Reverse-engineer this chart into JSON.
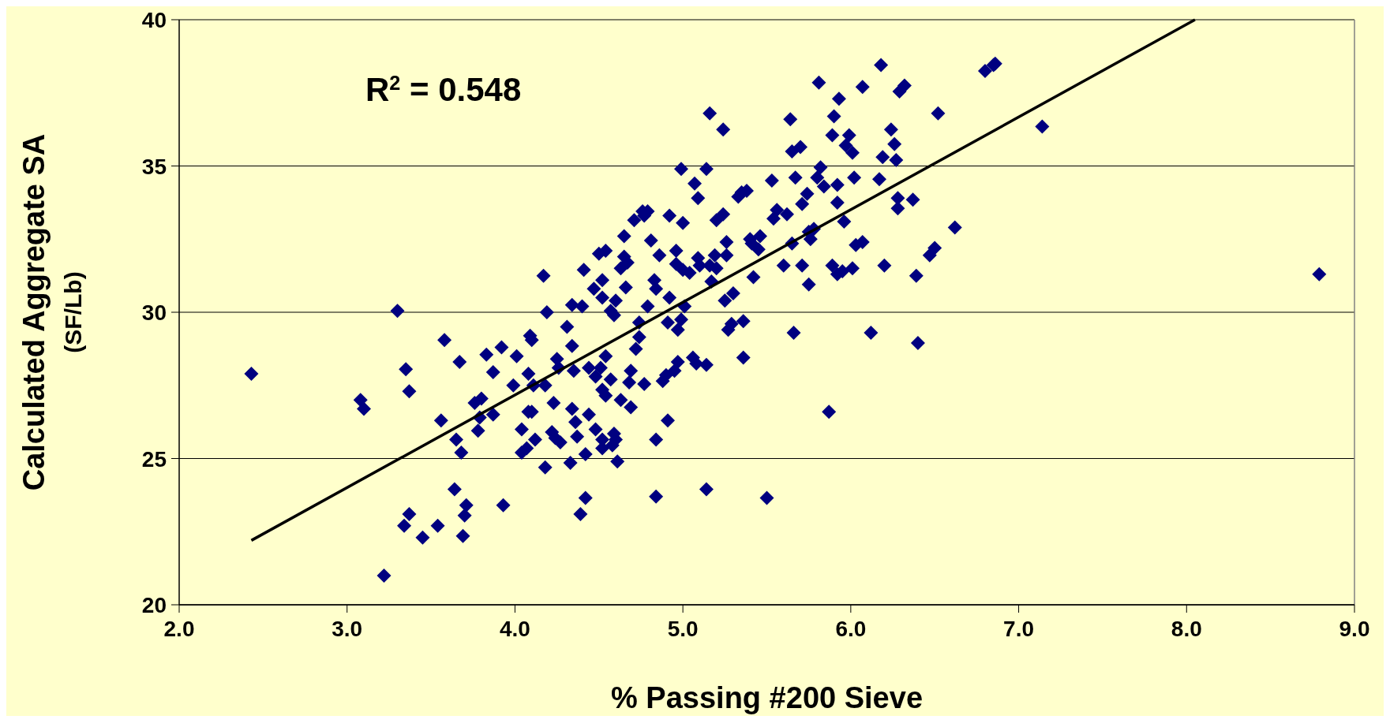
{
  "chart_data": {
    "type": "scatter",
    "xlabel": "% Passing #200 Sieve",
    "ylabel": "Calculated Aggregate SA\n(SF/Lb)",
    "xlim": [
      2,
      9
    ],
    "xticks": [
      {
        "value": 2,
        "label": "2.0"
      },
      {
        "value": 3,
        "label": "3.0"
      },
      {
        "value": 4,
        "label": "4.0"
      },
      {
        "value": 5,
        "label": "5.0"
      },
      {
        "value": 6,
        "label": "6.0"
      },
      {
        "value": 7,
        "label": "7.0"
      },
      {
        "value": 8,
        "label": "8.0"
      },
      {
        "value": 9,
        "label": "9.0"
      }
    ],
    "ylim": [
      20,
      40
    ],
    "yticks": [
      20,
      25,
      30,
      35,
      40
    ],
    "grid": "y",
    "annotations": [
      "R$^{2}$ = 0.548"
    ],
    "series": [
      {
        "marker": "diamond",
        "color": "#000080",
        "x": [
          2.43,
          3.3,
          3.08,
          3.1,
          3.35,
          3.37,
          3.34,
          3.37,
          3.22,
          3.45,
          3.54,
          3.56,
          3.58,
          3.64,
          3.65,
          3.67,
          3.68,
          3.7,
          3.69,
          3.71,
          3.76,
          3.78,
          3.8,
          3.79,
          3.83,
          3.87,
          3.87,
          3.92,
          3.93,
          3.99,
          4.01,
          4.04,
          4.04,
          4.07,
          4.09,
          4.1,
          4.08,
          4.11,
          4.08,
          4.1,
          4.12,
          4.17,
          4.19,
          4.18,
          4.18,
          4.22,
          4.23,
          4.25,
          4.26,
          4.24,
          4.27,
          4.31,
          4.33,
          4.34,
          4.34,
          4.35,
          4.34,
          4.36,
          4.37,
          4.41,
          4.4,
          4.39,
          4.42,
          4.42,
          4.44,
          4.44,
          4.47,
          4.48,
          4.48,
          4.5,
          4.52,
          4.52,
          4.51,
          4.52,
          4.52,
          4.52,
          4.54,
          4.54,
          4.54,
          4.57,
          4.57,
          4.58,
          4.59,
          4.6,
          4.59,
          4.6,
          4.61,
          4.63,
          4.63,
          4.65,
          4.65,
          4.66,
          4.67,
          4.68,
          4.69,
          4.69,
          4.71,
          4.72,
          4.74,
          4.74,
          4.76,
          4.77,
          4.77,
          4.79,
          4.79,
          4.81,
          4.83,
          4.84,
          4.84,
          4.84,
          4.86,
          4.88,
          4.9,
          4.91,
          4.91,
          4.92,
          4.92,
          4.95,
          4.96,
          4.96,
          4.97,
          4.97,
          4.99,
          5.0,
          5.0,
          5.01,
          4.99,
          5.04,
          5.06,
          5.07,
          5.09,
          5.08,
          5.09,
          5.1,
          5.14,
          5.14,
          5.14,
          5.16,
          5.16,
          5.17,
          5.19,
          5.2,
          5.2,
          5.24,
          5.24,
          5.26,
          5.26,
          5.25,
          5.27,
          5.29,
          5.3,
          5.33,
          5.35,
          5.36,
          5.36,
          5.38,
          5.4,
          5.42,
          5.41,
          5.45,
          5.46,
          5.5,
          5.53,
          5.54,
          5.56,
          5.6,
          5.62,
          5.64,
          5.65,
          5.65,
          5.66,
          5.67,
          5.7,
          5.71,
          5.71,
          5.74,
          5.75,
          5.76,
          5.75,
          5.78,
          5.8,
          5.81,
          5.82,
          5.84,
          5.87,
          5.89,
          5.89,
          5.9,
          5.92,
          5.92,
          5.93,
          5.92,
          5.95,
          5.96,
          5.97,
          5.99,
          6.01,
          6.01,
          6.02,
          6.03,
          6.07,
          6.07,
          6.12,
          6.17,
          6.18,
          6.19,
          6.2,
          6.24,
          6.26,
          6.27,
          6.28,
          6.28,
          6.29,
          6.32,
          6.37,
          6.39,
          6.4,
          6.47,
          6.5,
          6.52,
          6.62,
          6.8,
          6.85,
          6.86,
          7.14,
          8.79
        ],
        "values": [
          27.9,
          30.05,
          27.0,
          26.7,
          28.05,
          27.3,
          22.7,
          23.1,
          21.0,
          22.3,
          22.7,
          26.3,
          29.05,
          23.95,
          25.65,
          28.3,
          25.2,
          23.05,
          22.35,
          23.4,
          26.9,
          25.95,
          27.05,
          26.4,
          28.55,
          27.95,
          26.5,
          28.8,
          23.4,
          27.5,
          28.5,
          26.0,
          25.2,
          25.35,
          29.2,
          29.05,
          27.9,
          27.5,
          26.6,
          26.6,
          25.65,
          31.25,
          30.0,
          27.5,
          24.7,
          25.9,
          26.9,
          28.4,
          28.1,
          25.7,
          25.55,
          29.5,
          24.85,
          30.25,
          28.85,
          28.0,
          26.7,
          26.25,
          25.75,
          31.45,
          30.2,
          23.1,
          23.65,
          25.15,
          28.1,
          26.5,
          30.8,
          26.0,
          27.8,
          32.0,
          31.1,
          30.5,
          28.1,
          27.35,
          25.65,
          25.35,
          32.1,
          28.5,
          27.15,
          30.05,
          27.7,
          25.45,
          25.85,
          30.4,
          29.9,
          25.65,
          24.9,
          27.0,
          31.5,
          31.9,
          32.6,
          30.85,
          31.7,
          27.6,
          26.75,
          28.0,
          33.15,
          28.75,
          29.15,
          29.65,
          33.45,
          33.3,
          27.55,
          30.2,
          33.45,
          32.45,
          31.1,
          30.8,
          25.65,
          23.7,
          31.95,
          27.65,
          27.85,
          29.65,
          26.3,
          33.3,
          30.5,
          28.0,
          32.1,
          31.65,
          29.4,
          28.3,
          34.9,
          33.05,
          31.45,
          30.2,
          29.75,
          31.35,
          28.45,
          34.4,
          33.9,
          28.25,
          31.85,
          31.6,
          34.9,
          28.2,
          23.95,
          36.8,
          31.6,
          31.05,
          31.95,
          33.15,
          31.5,
          36.25,
          33.35,
          32.4,
          31.95,
          30.4,
          29.4,
          29.6,
          30.65,
          33.95,
          34.1,
          29.7,
          28.45,
          34.15,
          32.5,
          31.2,
          32.35,
          32.15,
          32.6,
          23.65,
          34.5,
          33.2,
          33.5,
          31.6,
          33.35,
          36.6,
          35.5,
          32.35,
          29.3,
          34.6,
          35.65,
          33.7,
          31.6,
          34.05,
          32.75,
          32.5,
          30.95,
          32.85,
          34.6,
          37.85,
          34.95,
          34.3,
          26.6,
          31.6,
          36.05,
          36.7,
          34.35,
          33.75,
          37.3,
          31.3,
          31.4,
          33.1,
          35.7,
          36.05,
          35.45,
          31.5,
          34.6,
          32.3,
          37.7,
          32.4,
          29.3,
          34.55,
          38.45,
          35.3,
          31.6,
          36.25,
          35.75,
          35.2,
          33.55,
          33.9,
          37.55,
          37.75,
          33.85,
          31.25,
          28.95,
          31.95,
          32.2,
          36.8,
          32.9,
          38.25,
          38.45,
          38.5,
          36.35,
          31.3
        ]
      },
      {
        "type": "line",
        "color": "#000000",
        "x": [
          2.43,
          8.05
        ],
        "values": [
          22.2,
          40
        ]
      }
    ]
  }
}
